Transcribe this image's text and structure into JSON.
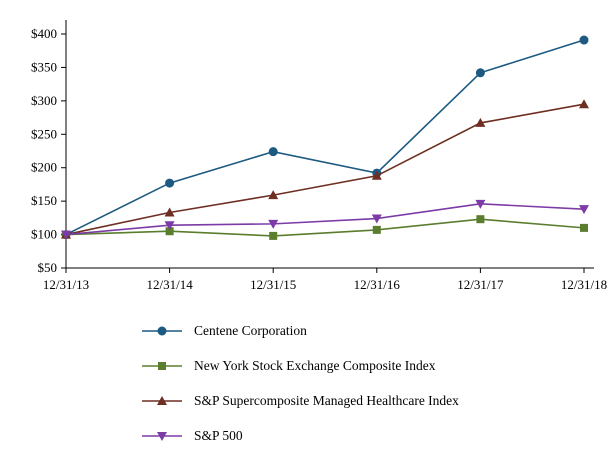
{
  "chart_data": {
    "type": "line",
    "title": "",
    "categories": [
      "12/31/13",
      "12/31/14",
      "12/31/15",
      "12/31/16",
      "12/31/17",
      "12/31/18"
    ],
    "series": [
      {
        "name": "Centene Corporation",
        "color": "#1C5A82",
        "marker": "circle",
        "values": [
          100,
          177,
          224,
          192,
          342,
          391
        ]
      },
      {
        "name": "New York Stock Exchange Composite Index",
        "color": "#5B7D2E",
        "marker": "square",
        "values": [
          100,
          105,
          98,
          107,
          123,
          110
        ]
      },
      {
        "name": "S&P Supercomposite Managed Healthcare Index",
        "color": "#6E2E22",
        "marker": "triangle-up",
        "values": [
          100,
          133,
          159,
          188,
          267,
          295
        ]
      },
      {
        "name": "S&P 500",
        "color": "#7C3BA6",
        "marker": "triangle-down",
        "values": [
          100,
          114,
          116,
          124,
          146,
          138
        ]
      }
    ],
    "ylim": [
      50,
      400
    ],
    "ytick_step": 50,
    "ytick_labels": [
      "$50",
      "$100",
      "$150",
      "$200",
      "$250",
      "$300",
      "$350",
      "$400"
    ],
    "xlabel": "",
    "ylabel": "",
    "grid": false,
    "legend_position": "bottom-left",
    "axis_color": "#000000"
  }
}
